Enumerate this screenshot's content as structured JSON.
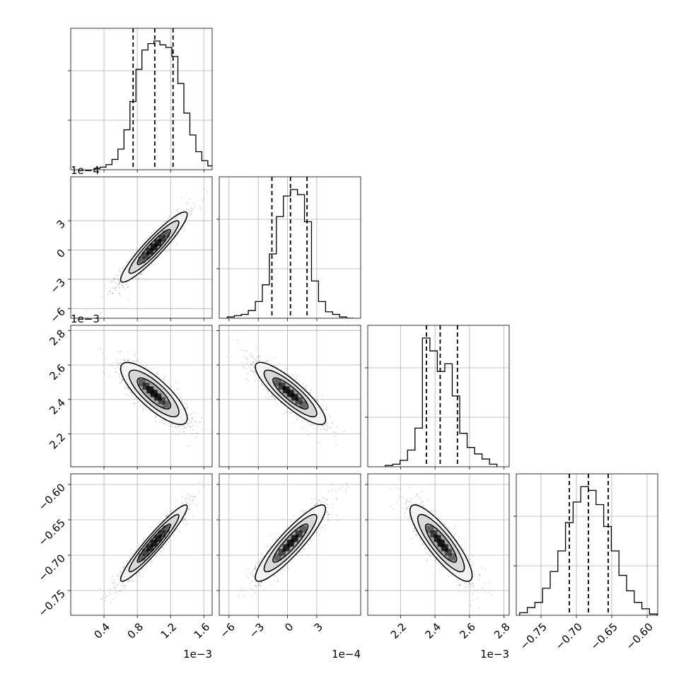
{
  "chart_data": {
    "type": "corner",
    "grid": true,
    "color": "#000000",
    "quantile_line_style": "dashed",
    "variables": [
      {
        "range": [
          0.0,
          1.7
        ],
        "ticks": [
          0.4,
          0.8,
          1.2,
          1.6
        ],
        "tick_labels": [
          "0.4",
          "0.8",
          "1.2",
          "1.6"
        ],
        "offset_label": "1e−3",
        "mean": 1.0,
        "sd": 0.2,
        "quantiles": [
          0.75,
          1.01,
          1.23
        ]
      },
      {
        "range": [
          -7.0,
          7.5
        ],
        "ticks": [
          -6,
          -3,
          0,
          3
        ],
        "tick_labels": [
          "−6",
          "−3",
          "0",
          "3"
        ],
        "offset_label": "1e−4",
        "mean": 0.3,
        "sd": 1.8,
        "quantiles": [
          -1.6,
          0.3,
          2.0
        ]
      },
      {
        "range": [
          2.01,
          2.83
        ],
        "ticks": [
          2.2,
          2.4,
          2.6,
          2.8
        ],
        "tick_labels": [
          "2.2",
          "2.4",
          "2.6",
          "2.8"
        ],
        "offset_label": "1e−3",
        "mean": 2.435,
        "sd": 0.09,
        "quantiles": [
          2.35,
          2.43,
          2.53
        ]
      },
      {
        "range": [
          -0.785,
          -0.585
        ],
        "ticks": [
          -0.75,
          -0.7,
          -0.65,
          -0.6
        ],
        "tick_labels": [
          "−0.75",
          "−0.70",
          "−0.65",
          "−0.60"
        ],
        "offset_label": "",
        "mean": -0.683,
        "sd": 0.027,
        "quantiles": [
          -0.71,
          -0.683,
          -0.655
        ]
      }
    ],
    "diagonal_histograms": [
      [
        1,
        2,
        4,
        8,
        16,
        31,
        53,
        78,
        93,
        98,
        100,
        97,
        95,
        88,
        67,
        44,
        27,
        14,
        7,
        3
      ],
      [
        1,
        2,
        3,
        6,
        13,
        26,
        50,
        79,
        95,
        100,
        96,
        75,
        29,
        13,
        5,
        3,
        1,
        0
      ],
      [
        1,
        2,
        5,
        13,
        30,
        100,
        90,
        74,
        80,
        55,
        26,
        15,
        10,
        6,
        2
      ],
      [
        2,
        6,
        10,
        21,
        34,
        50,
        72,
        88,
        100,
        97,
        86,
        69,
        50,
        31,
        19,
        10,
        5,
        1
      ]
    ],
    "pair_correlations": [
      {
        "row": 1,
        "col": 0,
        "rho": 0.93
      },
      {
        "row": 2,
        "col": 0,
        "rho": -0.8
      },
      {
        "row": 2,
        "col": 1,
        "rho": -0.86
      },
      {
        "row": 3,
        "col": 0,
        "rho": 0.95
      },
      {
        "row": 3,
        "col": 1,
        "rho": 0.9
      },
      {
        "row": 3,
        "col": 2,
        "rho": -0.85
      }
    ],
    "contour_levels_sigma": [
      0.5,
      1.0,
      1.5,
      2.0
    ]
  }
}
